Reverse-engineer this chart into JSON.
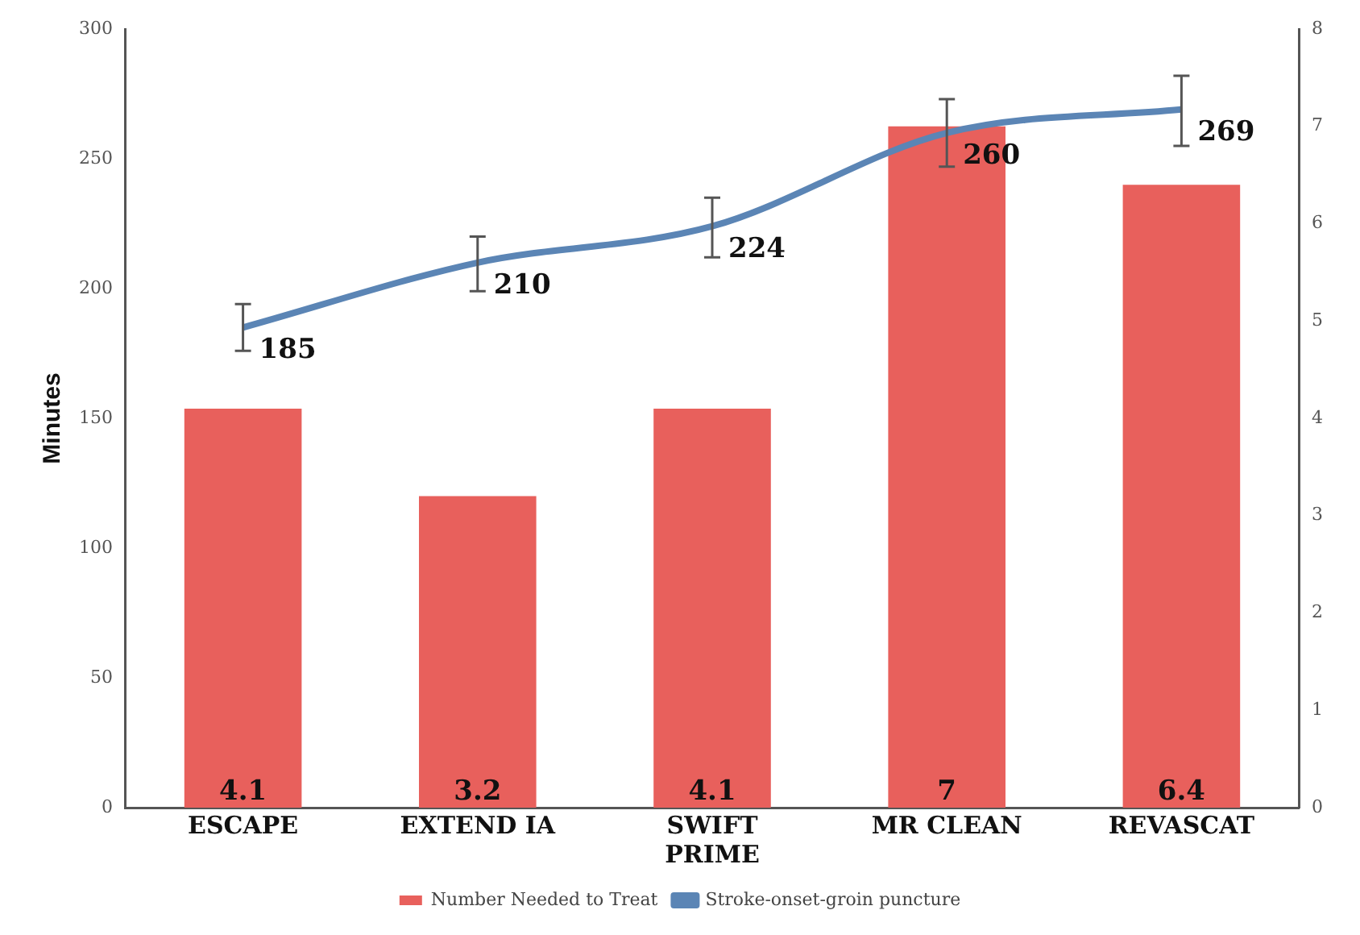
{
  "chart_data": {
    "type": "bar",
    "categories": [
      "ESCAPE",
      "EXTEND IA",
      "SWIFT PRIME",
      "MR CLEAN",
      "REVASCAT"
    ],
    "series": [
      {
        "name": "Number Needed to Treat",
        "axis": "y2",
        "color": "#e8605c",
        "values": [
          4.1,
          3.2,
          4.1,
          7,
          6.4
        ]
      },
      {
        "name": "Stroke-onset-groin puncture",
        "type": "line",
        "axis": "y",
        "color": "#5b85b5",
        "values": [
          185,
          210,
          224,
          260,
          269
        ],
        "errors": [
          [
            176,
            194
          ],
          [
            199,
            220
          ],
          [
            212,
            235
          ],
          [
            247,
            273
          ],
          [
            255,
            282
          ]
        ]
      }
    ],
    "ylabel": "Minutes",
    "ylim": [
      0,
      300
    ],
    "yticks": [
      0,
      50,
      100,
      150,
      200,
      250,
      300
    ],
    "y2lim": [
      0,
      8
    ],
    "y2ticks": [
      0,
      1,
      2,
      3,
      4,
      5,
      6,
      7,
      8
    ],
    "data_labels": true,
    "legend": "bottom",
    "grid": false,
    "marker": "none",
    "line_style": "solid"
  }
}
